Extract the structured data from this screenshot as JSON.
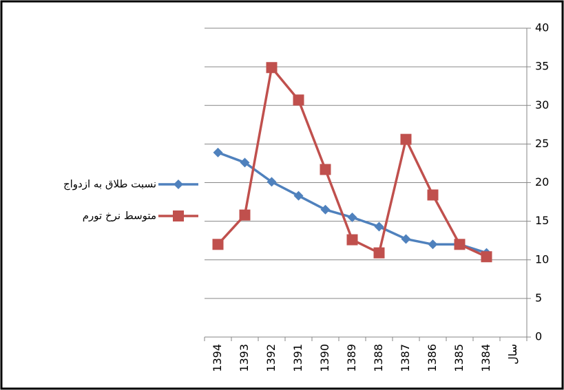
{
  "chart_data": {
    "type": "line",
    "categories": [
      "1394",
      "1393",
      "1392",
      "1391",
      "1390",
      "1389",
      "1388",
      "1387",
      "1386",
      "1385",
      "1384"
    ],
    "x_label": "سال",
    "series": [
      {
        "name": "نسبت طلاق به ازدواج",
        "color": "#4f81bd",
        "marker": "diamond",
        "values": [
          23.9,
          22.6,
          20.1,
          18.3,
          16.5,
          15.5,
          14.3,
          12.7,
          12.0,
          12.0,
          10.9
        ]
      },
      {
        "name": "متوسط نرخ تورم",
        "color": "#c0504d",
        "marker": "square",
        "values": [
          12.0,
          15.8,
          34.9,
          30.7,
          21.7,
          12.6,
          10.9,
          25.6,
          18.4,
          12.0,
          10.4
        ]
      }
    ],
    "ylim": [
      0,
      40
    ],
    "yticks": [
      0,
      5,
      10,
      15,
      20,
      25,
      30,
      35,
      40
    ],
    "grid": true,
    "legend": "left"
  }
}
